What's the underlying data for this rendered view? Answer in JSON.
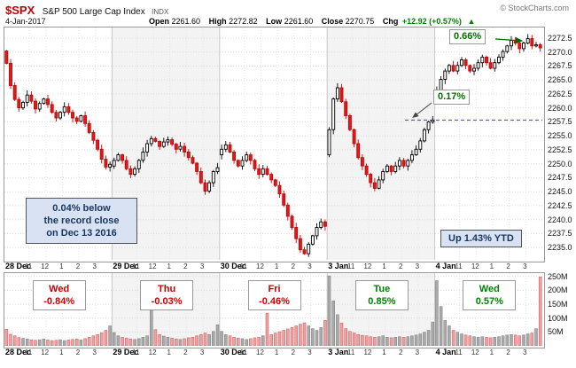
{
  "header": {
    "symbol": "$SPX",
    "name": "S&P 500 Large Cap Index",
    "exchange": "INDX",
    "copyright": "© StockCharts.com",
    "date": "4-Jan-2017",
    "quote": {
      "open_label": "Open",
      "open_value": "2261.60",
      "high_label": "High",
      "high_value": "2272.82",
      "low_label": "Low",
      "low_value": "2261.60",
      "close_label": "Close",
      "close_value": "2270.75",
      "chg_label": "Chg",
      "chg_value": "+12.92 (+0.57%)",
      "chg_arrow": "▲"
    }
  },
  "annotations": {
    "pct_high": "0.66%",
    "pct_gap": "0.17%",
    "record_note_line1": "0.04% below",
    "record_note_line2": "the record close",
    "record_note_line3": "on Dec 13 2016",
    "ytd_note": "Up 1.43% YTD"
  },
  "chart_data": {
    "type": "candlestick",
    "title": "$SPX S&P 500 Large Cap Index — 5-day intraday with volume",
    "price_axis": {
      "min": 2235.0,
      "max": 2272.5,
      "step": 2.5
    },
    "volume_axis": {
      "ticks_m": [
        250,
        200,
        150,
        100,
        50
      ],
      "labels": [
        "250M",
        "200M",
        "150M",
        "100M",
        "50M"
      ]
    },
    "hour_ticks": [
      "11",
      "12",
      "1",
      "2",
      "3"
    ],
    "record_line_price": 2257.83,
    "colors": {
      "up_candle": "#000000",
      "down_candle": "#cc0000",
      "up_volume": "#aaaaaa",
      "down_volume": "#f0a0a0",
      "record_line": "#3b3bbb",
      "annotation_green": "#007000",
      "note_blue": "#17365d"
    },
    "days": [
      {
        "label": "28 Dec",
        "weekday": "Wed",
        "change_pct": "-0.84%",
        "direction": "down",
        "open": 2270.2,
        "closes": [
          2268.0,
          2264.0,
          2261.5,
          2260.0,
          2261.0,
          2262.3,
          2261.2,
          2259.8,
          2260.8,
          2261.6,
          2260.6,
          2259.2,
          2258.2,
          2259.2,
          2260.2,
          2259.2,
          2258.2,
          2257.6,
          2258.6,
          2257.2,
          2255.6,
          2254.2,
          2252.6,
          2250.8,
          2249.4,
          2249.9
        ],
        "volumes_m": [
          60,
          42,
          36,
          30,
          27,
          25,
          22,
          20,
          22,
          25,
          21,
          19,
          20,
          22,
          19,
          21,
          23,
          25,
          21,
          26,
          31,
          36,
          41,
          47,
          56,
          72
        ]
      },
      {
        "label": "29 Dec",
        "weekday": "Thu",
        "change_pct": "-0.03%",
        "direction": "down",
        "open": 2249.6,
        "closes": [
          2250.6,
          2251.6,
          2250.6,
          2249.1,
          2248.1,
          2249.1,
          2250.6,
          2252.1,
          2253.6,
          2254.5,
          2254.0,
          2253.1,
          2253.9,
          2254.3,
          2253.5,
          2252.6,
          2253.1,
          2252.1,
          2251.1,
          2250.1,
          2248.6,
          2246.6,
          2245.1,
          2246.6,
          2248.6,
          2249.3
        ],
        "volumes_m": [
          48,
          36,
          31,
          28,
          25,
          23,
          26,
          31,
          36,
          148,
          58,
          41,
          35,
          31,
          28,
          25,
          23,
          26,
          29,
          31,
          36,
          41,
          46,
          41,
          52,
          76
        ]
      },
      {
        "label": "30 Dec",
        "weekday": "Fri",
        "change_pct": "-0.46%",
        "direction": "down",
        "open": 2251.6,
        "closes": [
          2252.6,
          2253.4,
          2252.1,
          2250.6,
          2249.6,
          2250.6,
          2251.6,
          2250.6,
          2249.1,
          2248.1,
          2249.1,
          2248.1,
          2247.1,
          2246.1,
          2244.6,
          2242.6,
          2240.6,
          2238.6,
          2236.6,
          2234.6,
          2233.9,
          2235.6,
          2237.1,
          2238.6,
          2239.6,
          2238.8
        ],
        "volumes_m": [
          52,
          41,
          36,
          31,
          28,
          26,
          23,
          26,
          29,
          31,
          36,
          118,
          41,
          46,
          51,
          56,
          61,
          66,
          72,
          78,
          83,
          72,
          62,
          56,
          66,
          92
        ]
      },
      {
        "label": "3 Jan",
        "weekday": "Tue",
        "change_pct": "0.85%",
        "direction": "up",
        "open": 2251.6,
        "closes": [
          2256.1,
          2261.6,
          2263.6,
          2261.1,
          2258.6,
          2256.1,
          2253.6,
          2251.1,
          2249.6,
          2248.1,
          2246.6,
          2245.6,
          2247.1,
          2248.6,
          2249.6,
          2248.6,
          2249.6,
          2250.6,
          2249.6,
          2250.6,
          2251.6,
          2252.6,
          2254.1,
          2256.1,
          2257.5,
          2257.8
        ],
        "volumes_m": [
          252,
          162,
          112,
          82,
          62,
          52,
          46,
          41,
          38,
          36,
          33,
          31,
          33,
          36,
          31,
          29,
          31,
          33,
          31,
          33,
          36,
          39,
          43,
          49,
          56,
          86
        ]
      },
      {
        "label": "4 Jan",
        "weekday": "Wed",
        "change_pct": "0.57%",
        "direction": "up",
        "open": 2261.6,
        "closes": [
          2263.1,
          2265.1,
          2266.6,
          2267.6,
          2266.6,
          2267.6,
          2268.6,
          2267.6,
          2266.6,
          2267.1,
          2268.1,
          2269.1,
          2268.1,
          2267.1,
          2268.1,
          2269.1,
          2270.1,
          2271.1,
          2272.1,
          2271.6,
          2270.6,
          2271.6,
          2272.4,
          2271.1,
          2271.3,
          2270.75
        ],
        "volumes_m": [
          235,
          142,
          92,
          72,
          56,
          49,
          43,
          39,
          36,
          33,
          31,
          33,
          31,
          29,
          31,
          33,
          36,
          39,
          41,
          39,
          36,
          39,
          43,
          46,
          62,
          248
        ]
      }
    ]
  }
}
